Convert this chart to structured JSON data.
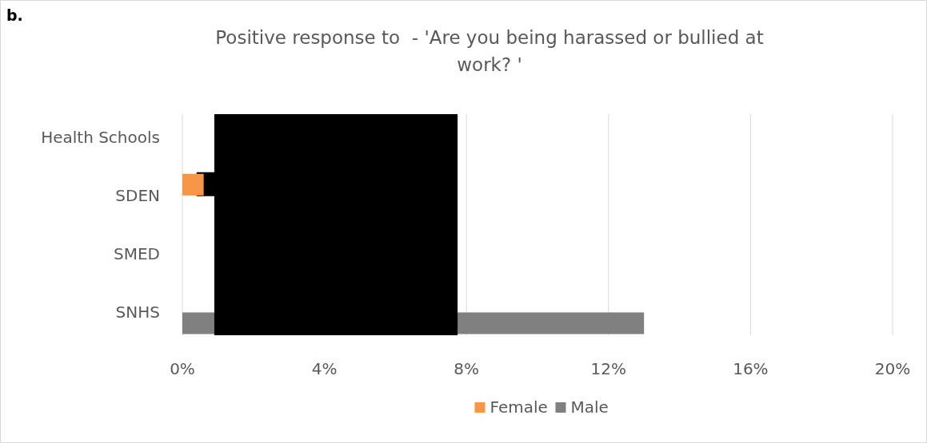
{
  "chart_data": {
    "type": "bar",
    "orientation": "horizontal",
    "title": "Positive response to  - 'Are you being harassed or bullied at work? '",
    "annotations": [
      "b."
    ],
    "categories": [
      "Health Schools",
      "SDEN",
      "SMED",
      "SNHS"
    ],
    "series": [
      {
        "name": "Female",
        "color": "#f79646",
        "values": [
          null,
          0.6,
          null,
          null
        ]
      },
      {
        "name": "Male",
        "color": "#808080",
        "values": [
          null,
          null,
          null,
          13
        ]
      }
    ],
    "xlim": [
      0,
      20
    ],
    "xticks": [
      {
        "value": 0,
        "label": "0%"
      },
      {
        "value": 4,
        "label": "4%"
      },
      {
        "value": 8,
        "label": "8%"
      },
      {
        "value": 12,
        "label": "12%"
      },
      {
        "value": 16,
        "label": "16%"
      },
      {
        "value": 20,
        "label": "20%"
      }
    ],
    "grid": "x",
    "legend": "bottom"
  }
}
